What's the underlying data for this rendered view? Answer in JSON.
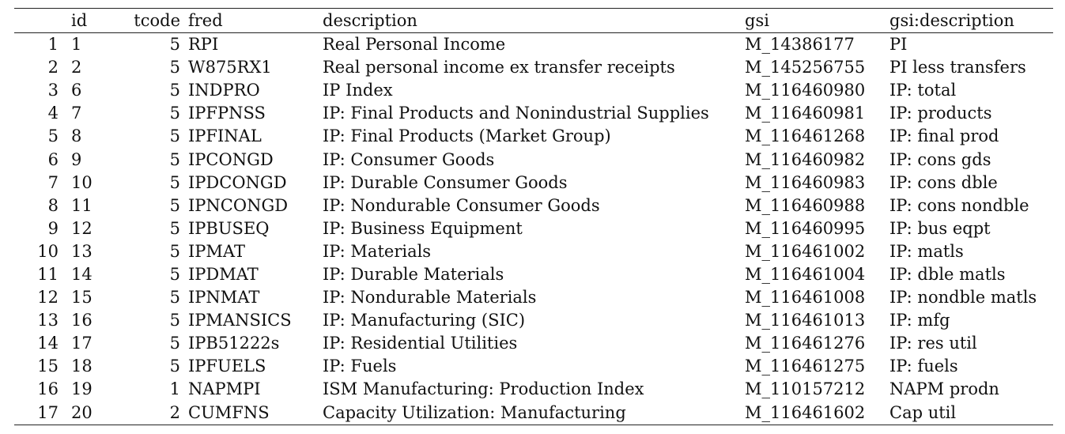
{
  "table": {
    "headers": {
      "row": "",
      "id": "id",
      "tcode": "tcode",
      "fred": "fred",
      "description": "description",
      "gsi": "gsi",
      "gsi_description": "gsi:description"
    },
    "rows": [
      {
        "row": "1",
        "id": "1",
        "tcode": "5",
        "fred": "RPI",
        "description": "Real Personal Income",
        "gsi": "M_14386177",
        "gsi_description": "PI"
      },
      {
        "row": "2",
        "id": "2",
        "tcode": "5",
        "fred": "W875RX1",
        "description": "Real personal income ex transfer receipts",
        "gsi": "M_145256755",
        "gsi_description": "PI less transfers"
      },
      {
        "row": "3",
        "id": "6",
        "tcode": "5",
        "fred": "INDPRO",
        "description": "IP Index",
        "gsi": "M_116460980",
        "gsi_description": "IP: total"
      },
      {
        "row": "4",
        "id": "7",
        "tcode": "5",
        "fred": "IPFPNSS",
        "description": "IP: Final Products and Nonindustrial Supplies",
        "gsi": "M_116460981",
        "gsi_description": "IP: products"
      },
      {
        "row": "5",
        "id": "8",
        "tcode": "5",
        "fred": "IPFINAL",
        "description": "IP: Final Products (Market Group)",
        "gsi": "M_116461268",
        "gsi_description": "IP: final prod"
      },
      {
        "row": "6",
        "id": "9",
        "tcode": "5",
        "fred": "IPCONGD",
        "description": "IP: Consumer Goods",
        "gsi": "M_116460982",
        "gsi_description": "IP: cons gds"
      },
      {
        "row": "7",
        "id": "10",
        "tcode": "5",
        "fred": "IPDCONGD",
        "description": "IP: Durable Consumer Goods",
        "gsi": "M_116460983",
        "gsi_description": "IP: cons dble"
      },
      {
        "row": "8",
        "id": "11",
        "tcode": "5",
        "fred": "IPNCONGD",
        "description": "IP: Nondurable Consumer Goods",
        "gsi": "M_116460988",
        "gsi_description": "IP: cons nondble"
      },
      {
        "row": "9",
        "id": "12",
        "tcode": "5",
        "fred": "IPBUSEQ",
        "description": "IP: Business Equipment",
        "gsi": "M_116460995",
        "gsi_description": "IP: bus eqpt"
      },
      {
        "row": "10",
        "id": "13",
        "tcode": "5",
        "fred": "IPMAT",
        "description": "IP: Materials",
        "gsi": "M_116461002",
        "gsi_description": "IP: matls"
      },
      {
        "row": "11",
        "id": "14",
        "tcode": "5",
        "fred": "IPDMAT",
        "description": "IP: Durable Materials",
        "gsi": "M_116461004",
        "gsi_description": "IP: dble matls"
      },
      {
        "row": "12",
        "id": "15",
        "tcode": "5",
        "fred": "IPNMAT",
        "description": "IP: Nondurable Materials",
        "gsi": "M_116461008",
        "gsi_description": "IP: nondble matls"
      },
      {
        "row": "13",
        "id": "16",
        "tcode": "5",
        "fred": "IPMANSICS",
        "description": "IP: Manufacturing (SIC)",
        "gsi": "M_116461013",
        "gsi_description": "IP: mfg"
      },
      {
        "row": "14",
        "id": "17",
        "tcode": "5",
        "fred": "IPB51222s",
        "description": "IP: Residential Utilities",
        "gsi": "M_116461276",
        "gsi_description": "IP: res util"
      },
      {
        "row": "15",
        "id": "18",
        "tcode": "5",
        "fred": "IPFUELS",
        "description": "IP: Fuels",
        "gsi": "M_116461275",
        "gsi_description": "IP: fuels"
      },
      {
        "row": "16",
        "id": "19",
        "tcode": "1",
        "fred": "NAPMPI",
        "description": "ISM Manufacturing: Production Index",
        "gsi": "M_110157212",
        "gsi_description": "NAPM prodn"
      },
      {
        "row": "17",
        "id": "20",
        "tcode": "2",
        "fred": "CUMFNS",
        "description": "Capacity Utilization: Manufacturing",
        "gsi": "M_116461602",
        "gsi_description": "Cap util"
      }
    ]
  }
}
